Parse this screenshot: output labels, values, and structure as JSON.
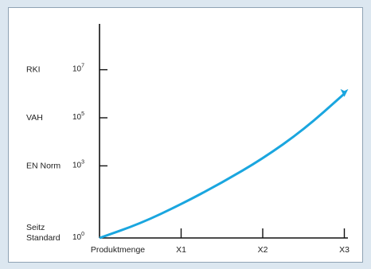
{
  "chart_data": {
    "type": "line",
    "title": "",
    "xlabel": "Produktmenge",
    "ylabel": "",
    "x_ticks": [
      "X1",
      "X2",
      "X3"
    ],
    "x_tick_values": [
      1,
      2,
      3
    ],
    "y_scale": "log",
    "y_ticks": [
      {
        "base": "10",
        "exp": "0",
        "value": 1
      },
      {
        "base": "10",
        "exp": "3",
        "value": 1000
      },
      {
        "base": "10",
        "exp": "5",
        "value": 100000
      },
      {
        "base": "10",
        "exp": "7",
        "value": 10000000
      }
    ],
    "y_categories": [
      {
        "lines": [
          "Seitz",
          "Standard"
        ],
        "value": 1
      },
      {
        "lines": [
          "EN Norm"
        ],
        "value": 1000
      },
      {
        "lines": [
          "VAH"
        ],
        "value": 100000
      },
      {
        "lines": [
          "RKI"
        ],
        "value": 10000000
      }
    ],
    "xlim": [
      0,
      3
    ],
    "series": [
      {
        "color": "#1aa6df",
        "arrow_end": true,
        "x": [
          0,
          0.5,
          1,
          1.5,
          2,
          2.5,
          3
        ],
        "y_log10": [
          0,
          0.6,
          1.4,
          2.3,
          3.3,
          4.5,
          6.0
        ]
      }
    ],
    "grid": false
  },
  "colors": {
    "curve": "#1aa6df",
    "axis": "#111111",
    "background": "#dce7f0"
  }
}
